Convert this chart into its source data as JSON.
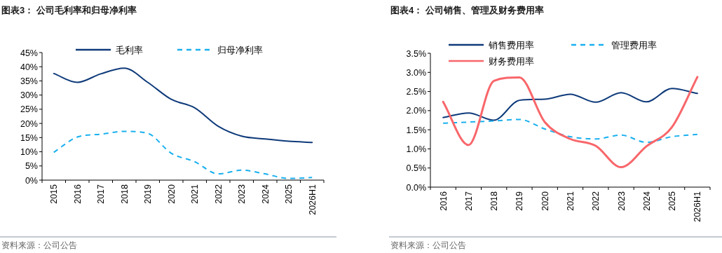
{
  "chart_data": [
    {
      "type": "line",
      "title": "图表3：  公司毛利率和归母净利率",
      "categories": [
        "2015",
        "2016",
        "2017",
        "2018",
        "2019",
        "2020",
        "2021",
        "2022",
        "2023",
        "2024",
        "2025",
        "2026H1"
      ],
      "series": [
        {
          "name": "毛利率",
          "color": "#0e3a7a",
          "line_style": "solid",
          "values": [
            37.6,
            34.5,
            37.5,
            39.5,
            34.5,
            28.5,
            25.5,
            19,
            15.5,
            14.5,
            13.7,
            13.3
          ]
        },
        {
          "name": "归母净利率",
          "color": "#1ab0ef",
          "line_style": "dashed",
          "values": [
            9.8,
            15.2,
            16.2,
            17.2,
            16.5,
            9.5,
            6.5,
            2.2,
            3.5,
            2.2,
            0.6,
            0.9
          ]
        }
      ],
      "ylim": [
        0,
        45
      ],
      "yticks": [
        {
          "value": 0,
          "label": "0%"
        },
        {
          "value": 5,
          "label": "5%"
        },
        {
          "value": 10,
          "label": "10%"
        },
        {
          "value": 15,
          "label": "15%"
        },
        {
          "value": 20,
          "label": "20%"
        },
        {
          "value": 25,
          "label": "25%"
        },
        {
          "value": 30,
          "label": "30%"
        },
        {
          "value": 35,
          "label": "35%"
        },
        {
          "value": 40,
          "label": "40%"
        },
        {
          "value": 45,
          "label": "45%"
        }
      ],
      "legend": "top",
      "grid": false,
      "annotations": [
        "资料来源：公司公告"
      ]
    },
    {
      "type": "line",
      "title": "图表4：  公司销售、管理及财务费用率",
      "categories": [
        "2016",
        "2017",
        "2018",
        "2019",
        "2020",
        "2021",
        "2022",
        "2023",
        "2024",
        "2025",
        "2026H1"
      ],
      "series": [
        {
          "name": "销售费用率",
          "color": "#0e3a7a",
          "line_style": "solid",
          "values": [
            1.82,
            1.94,
            1.75,
            2.27,
            2.3,
            2.43,
            2.22,
            2.47,
            2.23,
            2.58,
            2.45
          ]
        },
        {
          "name": "管理费用率",
          "color": "#1ab0ef",
          "line_style": "dashed",
          "values": [
            1.67,
            1.7,
            1.73,
            1.77,
            1.52,
            1.32,
            1.26,
            1.36,
            1.17,
            1.32,
            1.38
          ]
        },
        {
          "name": "财务费用率",
          "color": "#f8666a",
          "line_style": "solid",
          "values": [
            2.23,
            1.1,
            2.78,
            2.87,
            1.7,
            1.26,
            1.08,
            0.52,
            1.07,
            1.57,
            2.88
          ]
        }
      ],
      "ylim": [
        0,
        3.5
      ],
      "yticks": [
        {
          "value": 0,
          "label": "0.0%"
        },
        {
          "value": 0.5,
          "label": "0.5%"
        },
        {
          "value": 1,
          "label": "1.0%"
        },
        {
          "value": 1.5,
          "label": "1.5%"
        },
        {
          "value": 2,
          "label": "2.0%"
        },
        {
          "value": 2.5,
          "label": "2.5%"
        },
        {
          "value": 3,
          "label": "3.0%"
        },
        {
          "value": 3.5,
          "label": "3.5%"
        }
      ],
      "legend": "top",
      "grid": false,
      "annotations": [
        "资料来源：公司公告"
      ]
    }
  ]
}
